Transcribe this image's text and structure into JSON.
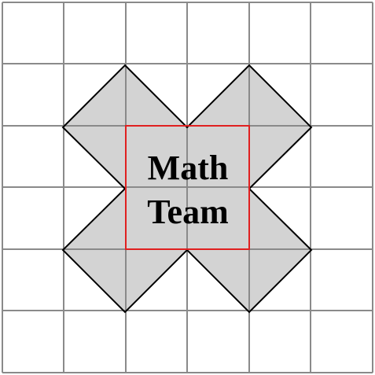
{
  "diagram": {
    "grid": {
      "cols": 6,
      "rows": 6
    },
    "label": {
      "line1": "Math",
      "line2": "Team"
    },
    "colors": {
      "background": "#ffffff",
      "grid_line": "#8a8a8a",
      "shape_fill": "#d3d3d3",
      "shape_outline": "#000000",
      "inner_square_outline": "#e02020",
      "text": "#000000"
    }
  }
}
